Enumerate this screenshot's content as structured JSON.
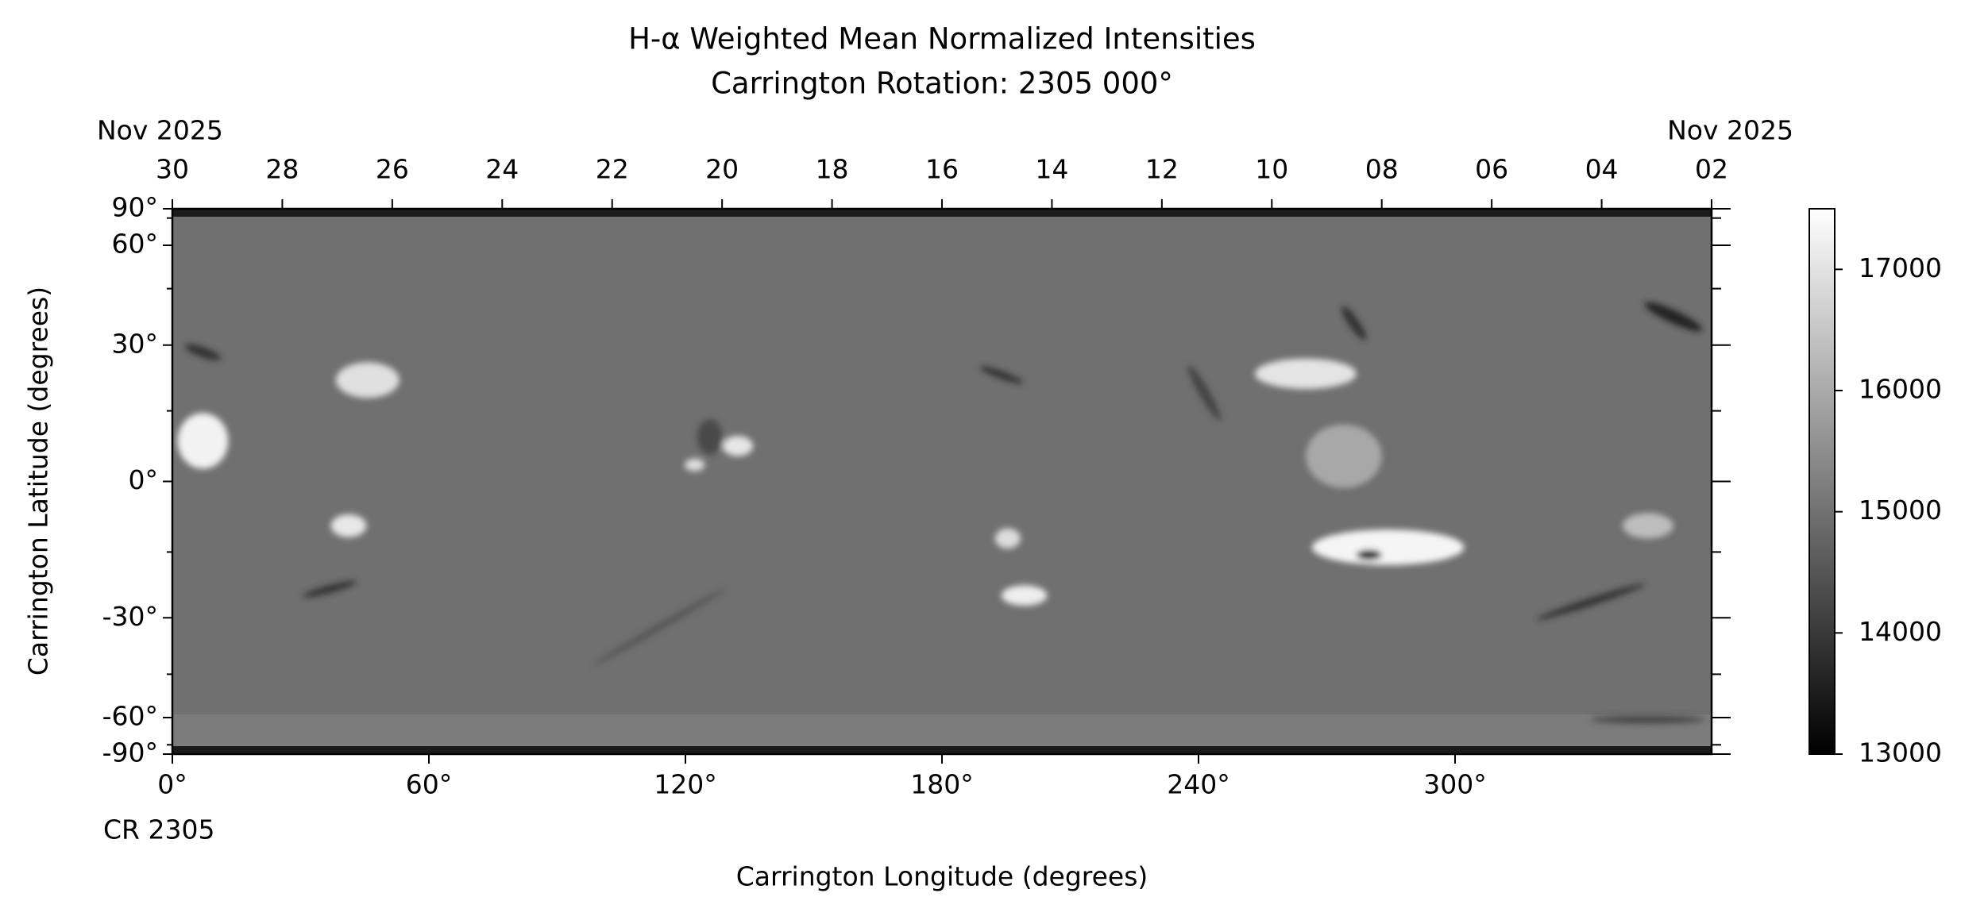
{
  "chart_data": {
    "type": "image",
    "title": "H-α Weighted Mean Normalized Intensities",
    "subtitle": "Carrington Rotation: 2305 000°",
    "x_label": "Carrington Longitude (degrees)",
    "y_label": "Carrington Latitude (degrees)",
    "x_start_label": "CR 2305",
    "xlim": [
      0,
      360
    ],
    "xticks": [
      {
        "value": 0,
        "label": "0°"
      },
      {
        "value": 60,
        "label": "60°"
      },
      {
        "value": 120,
        "label": "120°"
      },
      {
        "value": 180,
        "label": "180°"
      },
      {
        "value": 240,
        "label": "240°"
      },
      {
        "value": 300,
        "label": "300°"
      }
    ],
    "ylim": [
      -90,
      90
    ],
    "yscale": "sine",
    "yticks": [
      {
        "value": 90,
        "label": "90°"
      },
      {
        "value": 60,
        "label": "60°"
      },
      {
        "value": 30,
        "label": "30°"
      },
      {
        "value": 0,
        "label": "0°"
      },
      {
        "value": -30,
        "label": "-30°"
      },
      {
        "value": -60,
        "label": "-60°"
      },
      {
        "value": -90,
        "label": "-90°"
      }
    ],
    "yminor_ticks": [
      75,
      45,
      15,
      -15,
      -45,
      -75
    ],
    "x2_start_label": "Nov 2025",
    "x2_end_label": "Nov 2025",
    "x2lim": [
      30,
      2
    ],
    "x2ticks": [
      30,
      28,
      26,
      24,
      22,
      20,
      18,
      16,
      14,
      12,
      10,
      {
        "value": 8,
        "label": "08"
      },
      {
        "value": 6,
        "label": "06"
      },
      {
        "value": 4,
        "label": "04"
      },
      {
        "value": 2,
        "label": "02"
      }
    ],
    "colormap": "gray",
    "clim": [
      13000,
      17500
    ],
    "cticks": [
      13000,
      14000,
      15000,
      16000,
      17000
    ]
  }
}
